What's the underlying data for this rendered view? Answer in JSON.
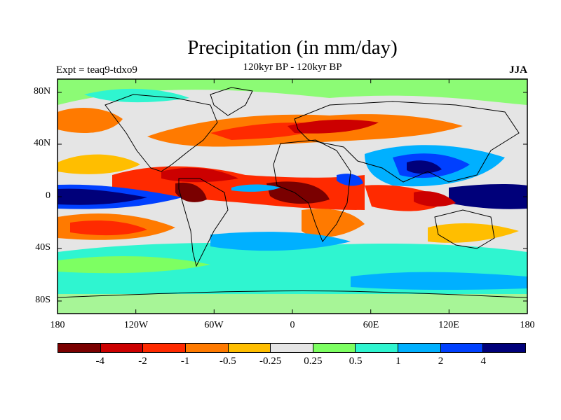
{
  "chart_data": {
    "type": "heatmap",
    "title": "Precipitation (in mm/day)",
    "subtitle": "120kyr BP - 120kyr BP",
    "left_label": "Expt = teaq9-tdxo9",
    "right_label": "JJA",
    "x_ticks": [
      "180",
      "120W",
      "60W",
      "0",
      "60E",
      "120E",
      "180"
    ],
    "y_ticks": [
      "80N",
      "40N",
      "0",
      "40S",
      "80S"
    ],
    "colorbar": {
      "levels": [
        "-4",
        "-2",
        "-1",
        "-0.5",
        "-0.25",
        "0.25",
        "0.5",
        "1",
        "2",
        "4"
      ],
      "colors": [
        "#7a0000",
        "#cc0000",
        "#ff2a00",
        "#ff7a00",
        "#ffbe00",
        "#e5e5e5",
        "#7dff62",
        "#2ff5d0",
        "#00b0ff",
        "#0040ff",
        "#00007a"
      ]
    },
    "colors": {
      "land_nodata": "#e5e5e5",
      "coastline": "#000000"
    }
  }
}
